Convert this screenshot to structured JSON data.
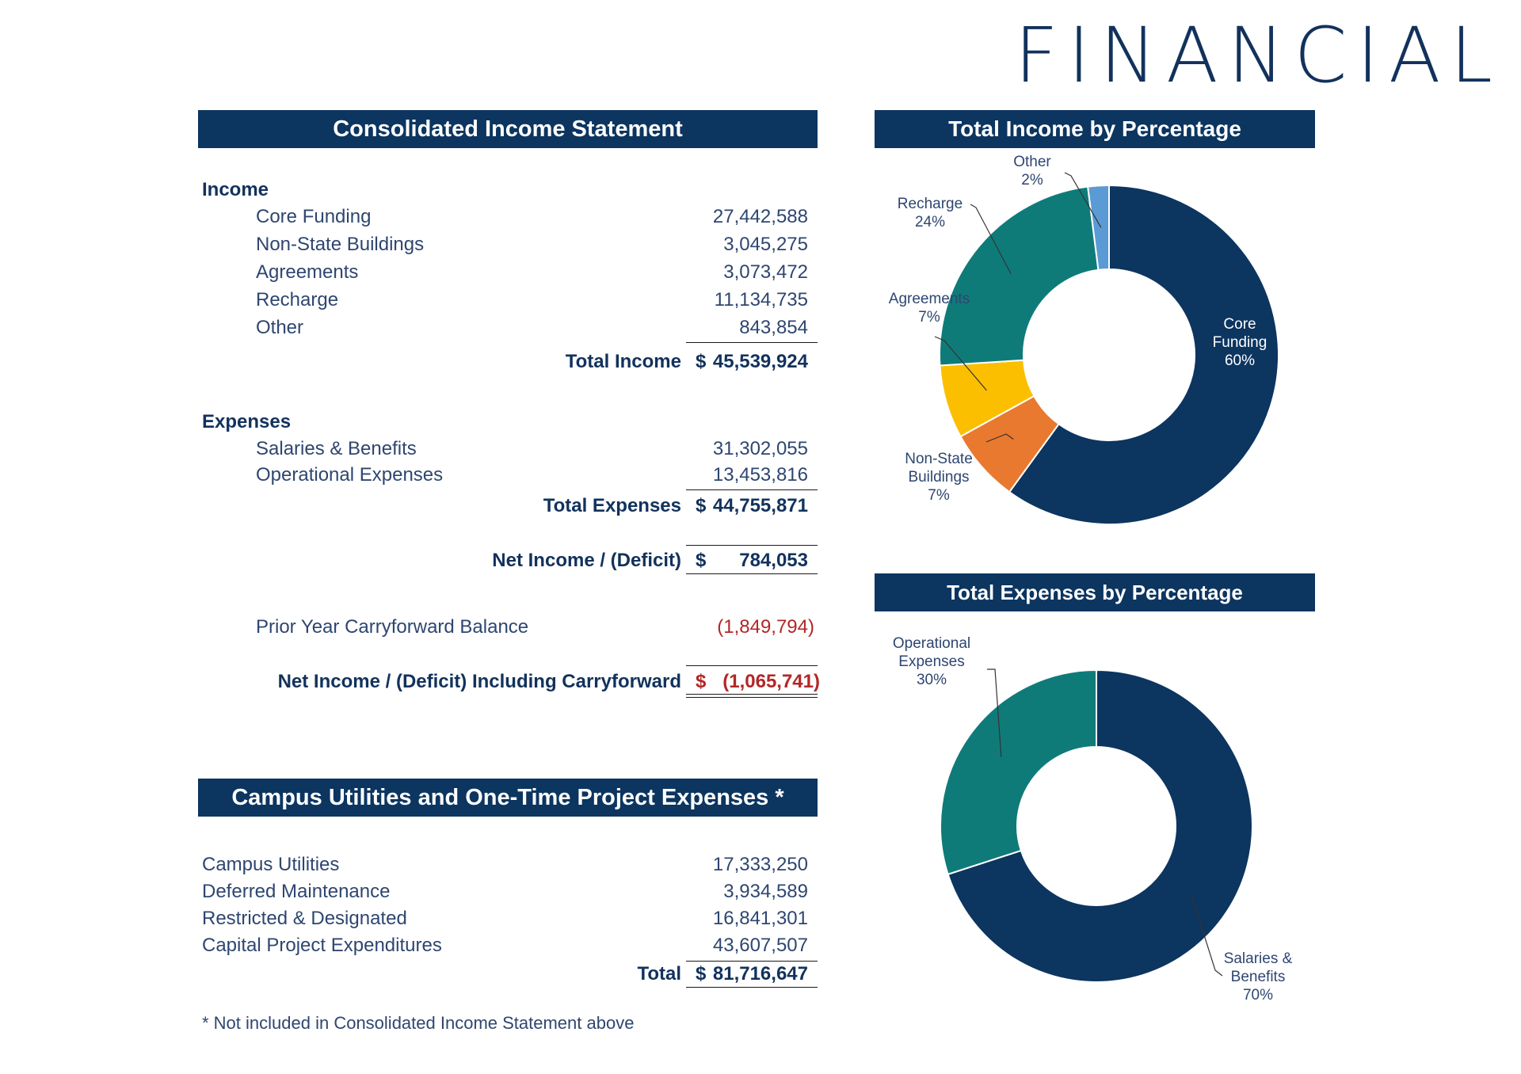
{
  "page_title": "FINANCIAL",
  "income_statement": {
    "title": "Consolidated Income Statement",
    "income_heading": "Income",
    "income_items": [
      {
        "label": "Core Funding",
        "value": "27,442,588"
      },
      {
        "label": "Non-State Buildings",
        "value": "3,045,275"
      },
      {
        "label": "Agreements",
        "value": "3,073,472"
      },
      {
        "label": "Recharge",
        "value": "11,134,735"
      },
      {
        "label": "Other",
        "value": "843,854"
      }
    ],
    "total_income": {
      "label": "Total Income",
      "currency": "$",
      "value": "45,539,924"
    },
    "expenses_heading": "Expenses",
    "expense_items": [
      {
        "label": "Salaries & Benefits",
        "value": "31,302,055"
      },
      {
        "label": "Operational Expenses",
        "value": "13,453,816"
      }
    ],
    "total_expenses": {
      "label": "Total Expenses",
      "currency": "$",
      "value": "44,755,871"
    },
    "net_income": {
      "label": "Net Income / (Deficit)",
      "currency": "$",
      "value": "784,053"
    },
    "carryforward": {
      "label": "Prior Year Carryforward Balance",
      "value": "(1,849,794)"
    },
    "net_income_cf": {
      "label": "Net Income / (Deficit) Including Carryforward",
      "currency": "$",
      "value": "(1,065,741)"
    }
  },
  "utilities": {
    "title": "Campus Utilities and One-Time Project Expenses *",
    "items": [
      {
        "label": "Campus Utilities",
        "value": "17,333,250"
      },
      {
        "label": "Deferred Maintenance",
        "value": "3,934,589"
      },
      {
        "label": "Restricted & Designated",
        "value": "16,841,301"
      },
      {
        "label": "Capital Project Expenditures",
        "value": "43,607,507"
      }
    ],
    "total": {
      "label": "Total",
      "currency": "$",
      "value": "81,716,647"
    },
    "footnote": "* Not included in Consolidated Income Statement above"
  },
  "chart_data": [
    {
      "type": "pie",
      "title": "Total Income by Percentage",
      "categories": [
        "Core Funding",
        "Non-State Buildings",
        "Agreements",
        "Recharge",
        "Other"
      ],
      "values": [
        60,
        7,
        7,
        24,
        2
      ],
      "labels": [
        "60%",
        "7%",
        "7%",
        "24%",
        "2%"
      ],
      "colors": [
        "#0c3560",
        "#e8792f",
        "#fbbf00",
        "#0f7b79",
        "#5b9bd5"
      ]
    },
    {
      "type": "pie",
      "title": "Total Expenses by Percentage",
      "categories": [
        "Salaries & Benefits",
        "Operational Expenses"
      ],
      "values": [
        70,
        30
      ],
      "labels": [
        "70%",
        "30%"
      ],
      "colors": [
        "#0c3560",
        "#0f7b79"
      ]
    }
  ]
}
